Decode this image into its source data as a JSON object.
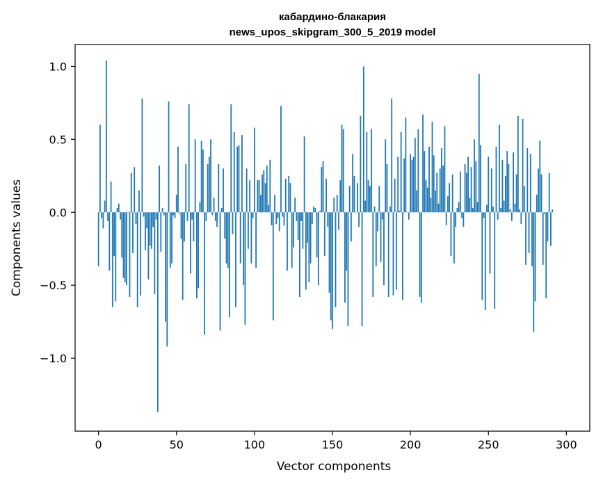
{
  "chart_data": {
    "type": "bar",
    "title": "кабардино-блакария",
    "subtitle": "news_upos_skipgram_300_5_2019 model",
    "xlabel": "Vector components",
    "ylabel": "Components values",
    "xlim": [
      -15,
      315
    ],
    "ylim": [
      -1.5,
      1.15
    ],
    "xticks": [
      0,
      50,
      100,
      150,
      200,
      250,
      300
    ],
    "yticks": [
      -1.0,
      -0.5,
      0.0,
      0.5,
      1.0
    ],
    "ytick_labels": [
      "−1.0",
      "−0.5",
      "0.0",
      "0.5",
      "1.0"
    ],
    "grid": false,
    "bar_color": "#1f77b4",
    "values": [
      -0.37,
      0.6,
      -0.04,
      -0.11,
      0.08,
      1.04,
      -0.06,
      -0.4,
      0.21,
      -0.65,
      -0.3,
      -0.61,
      0.03,
      0.06,
      -0.05,
      -0.31,
      -0.45,
      -0.48,
      -0.5,
      0.0,
      -0.58,
      0.27,
      -0.28,
      0.31,
      -0.08,
      -0.65,
      0.15,
      -0.57,
      0.78,
      -0.03,
      -0.26,
      -0.11,
      -0.46,
      -0.23,
      -0.25,
      -0.1,
      -0.56,
      -0.05,
      -1.37,
      0.32,
      -0.27,
      0.03,
      -0.02,
      -0.75,
      -0.92,
      0.76,
      -0.38,
      -0.35,
      -0.02,
      -0.04,
      0.12,
      0.45,
      -0.01,
      -0.18,
      -0.6,
      -0.2,
      0.33,
      -0.06,
      0.74,
      -0.42,
      -0.05,
      -0.2,
      0.5,
      -0.59,
      -0.52,
      0.07,
      0.49,
      0.43,
      -0.84,
      -0.06,
      0.33,
      0.38,
      0.5,
      -0.02,
      0.1,
      -0.06,
      -0.1,
      0.33,
      -0.81,
      0.03,
      0.3,
      -0.18,
      -0.35,
      -0.38,
      -0.72,
      0.74,
      -0.15,
      0.55,
      -0.65,
      0.45,
      0.46,
      -0.35,
      0.53,
      -0.5,
      -0.77,
      0.3,
      -0.25,
      0.22,
      -0.35,
      -0.04,
      0.58,
      -0.38,
      0.22,
      0.22,
      0.12,
      0.26,
      0.29,
      0.2,
      0.32,
      0.05,
      0.36,
      -0.09,
      -0.74,
      0.12,
      -0.08,
      -0.04,
      -0.13,
      0.73,
      -0.03,
      -0.09,
      0.23,
      -0.4,
      0.25,
      0.2,
      -0.38,
      -0.24,
      0.1,
      -0.06,
      -0.19,
      -0.58,
      -0.06,
      -0.25,
      0.52,
      -0.53,
      -0.21,
      -0.48,
      -0.35,
      -0.08,
      0.04,
      0.03,
      -0.31,
      -0.5,
      0.01,
      0.31,
      0.35,
      -0.3,
      0.23,
      -0.1,
      -0.55,
      -0.74,
      -0.8,
      0.1,
      -0.65,
      0.12,
      -0.12,
      0.22,
      0.6,
      0.57,
      -0.62,
      -0.4,
      -0.78,
      0.18,
      -0.2,
      0.4,
      0.25,
      0.0,
      0.2,
      -0.1,
      0.66,
      -0.78,
      1.0,
      0.08,
      0.55,
      0.22,
      0.18,
      0.57,
      -0.58,
      0.04,
      -0.37,
      -0.13,
      0.18,
      -0.34,
      -0.05,
      -0.5,
      0.5,
      0.33,
      -0.58,
      0.04,
      0.78,
      -0.57,
      0.23,
      -0.53,
      0.38,
      0.01,
      0.55,
      -0.6,
      0.37,
      0.65,
      0.0,
      -0.05,
      0.4,
      0.36,
      0.38,
      0.51,
      0.15,
      0.57,
      -0.58,
      -0.62,
      0.67,
      0.42,
      0.22,
      0.17,
      0.45,
      0.1,
      0.62,
      0.39,
      0.15,
      0.27,
      0.06,
      0.3,
      0.44,
      0.32,
      0.59,
      -0.09,
      0.11,
      0.2,
      -0.3,
      0.26,
      -0.35,
      -0.1,
      0.03,
      0.07,
      0.28,
      -0.04,
      -0.1,
      0.33,
      0.27,
      0.38,
      0.1,
      0.31,
      0.03,
      0.5,
      0.35,
      0.07,
      0.95,
      0.46,
      -0.6,
      -0.04,
      -0.67,
      0.05,
      0.38,
      -0.42,
      0.3,
      0.04,
      -0.66,
      0.45,
      -0.05,
      0.6,
      0.03,
      0.36,
      0.08,
      0.25,
      0.42,
      0.33,
      0.02,
      -0.06,
      0.41,
      0.06,
      0.26,
      0.66,
      0.02,
      -0.08,
      0.64,
      0.18,
      -0.36,
      0.44,
      -0.28,
      0.4,
      -0.37,
      -0.82,
      -0.61,
      0.12,
      0.3,
      0.49,
      0.26,
      -0.36,
      -0.01,
      -0.59,
      -0.2,
      0.27,
      -0.23,
      0.02
    ]
  }
}
